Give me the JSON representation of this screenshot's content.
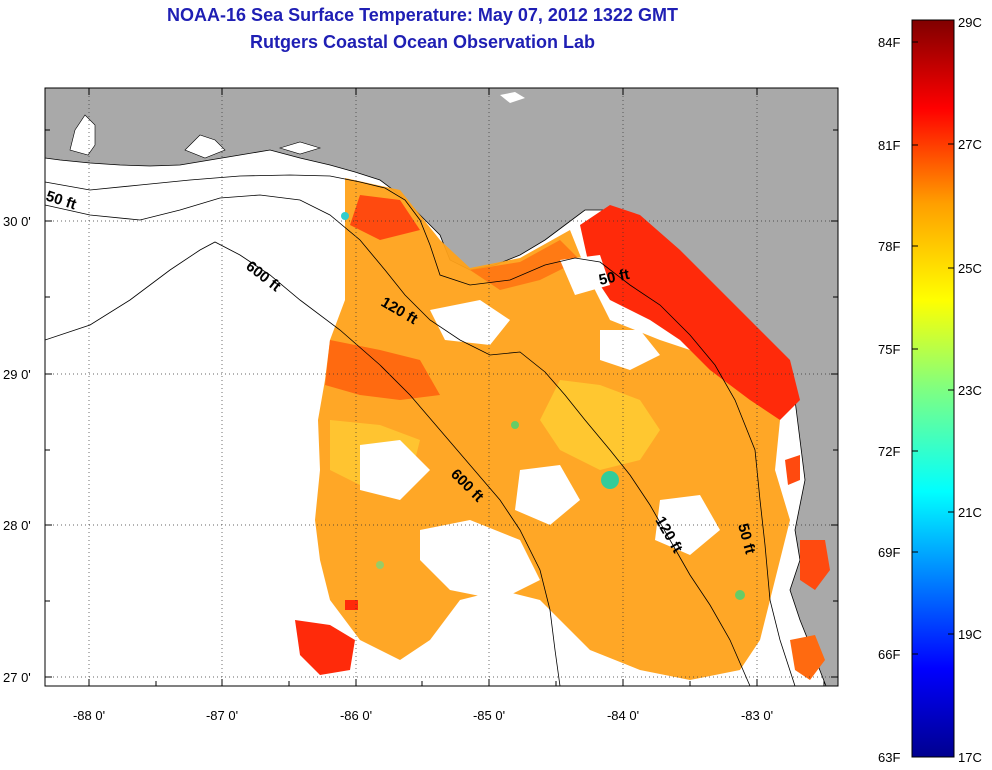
{
  "header": {
    "title": "NOAA-16 Sea Surface Temperature:  May 07, 2012 1322 GMT",
    "subtitle": "Rutgers Coastal Ocean Observation Lab"
  },
  "map": {
    "longitude_labels": [
      "-88 0'",
      "-87 0'",
      "-86 0'",
      "-85 0'",
      "-84 0'",
      "-83 0'"
    ],
    "latitude_labels": [
      "30 0'",
      "29 0'",
      "28 0'",
      "27 0'"
    ],
    "isobath_labels": [
      "50 ft",
      "600 ft",
      "120 ft",
      "50 ft",
      "600 ft",
      "120 ft",
      "50 ft"
    ],
    "colors": {
      "land": "#a9a9a9",
      "ocean": "#ffffff",
      "coast": "#000000"
    }
  },
  "colorbar": {
    "fahrenheit_labels": [
      "84F",
      "81F",
      "78F",
      "75F",
      "72F",
      "69F",
      "66F",
      "63F"
    ],
    "celsius_labels": [
      "29C",
      "27C",
      "25C",
      "23C",
      "21C",
      "19C",
      "17C"
    ],
    "range_celsius": [
      17,
      29
    ],
    "colors": [
      "#00008f",
      "#0000ff",
      "#0080ff",
      "#00ffff",
      "#80ff80",
      "#ffff00",
      "#ff8000",
      "#ff0000",
      "#800000"
    ]
  }
}
